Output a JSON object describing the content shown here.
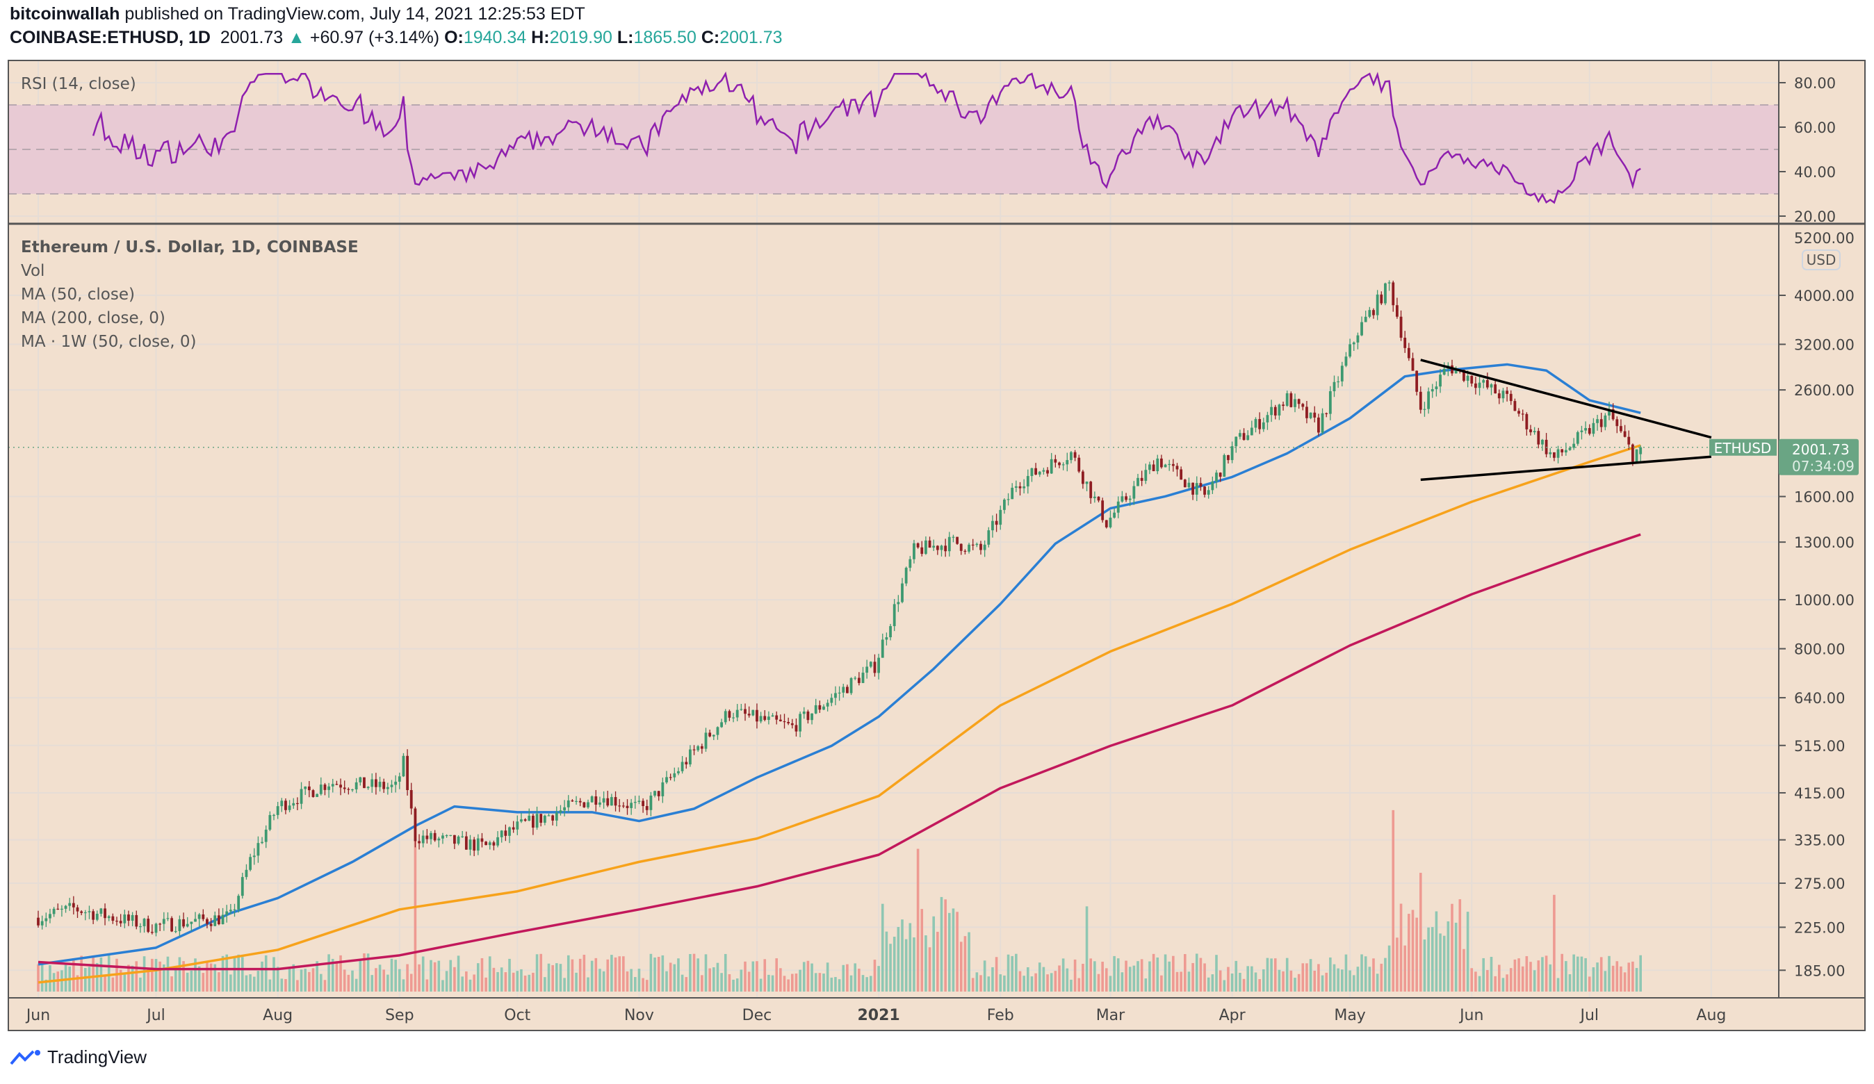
{
  "header": {
    "author": "bitcoinwallah",
    "published": "published on TradingView.com, July 14, 2021 12:25:53 EDT",
    "symbol": "COINBASE:ETHUSD, 1D",
    "last": "2001.73",
    "change": "+60.97 (+3.14%)",
    "o_label": "O:",
    "o": "1940.34",
    "h_label": "H:",
    "h": "2019.90",
    "l_label": "L:",
    "l": "1865.50",
    "c_label": "C:",
    "c": "2001.73"
  },
  "legend": {
    "rsi": "RSI (14, close)",
    "title": "Ethereum / U.S. Dollar, 1D, COINBASE",
    "vol": "Vol",
    "ma50": "MA (50, close)",
    "ma200": "MA (200, close, 0)",
    "ma1w": "MA · 1W (50, close, 0)"
  },
  "currency_badge": "USD",
  "price_tag": {
    "symbol": "ETHUSD",
    "price": "2001.73",
    "countdown": "07:34:09"
  },
  "brand": "TradingView",
  "colors": {
    "background": "#f2e0cf",
    "up": "#3d9970",
    "down": "#8f1d22",
    "vol_up": "#8fc7b3",
    "vol_down": "#ee9a92",
    "ma50": "#2a7fd4",
    "ma200": "#f7a21b",
    "ma1w": "#c2185b",
    "rsi": "#8e1fae",
    "rsi_band": "#e8cad4",
    "tag": "#6aa584"
  },
  "chart_data": {
    "type": "candlestick",
    "title": "Ethereum / U.S. Dollar, 1D, COINBASE",
    "y_scale": "log",
    "ylim": [
      170,
      5200
    ],
    "y_ticks": [
      "4000.00",
      "3200.00",
      "2600.00",
      "1600.00",
      "1300.00",
      "1000.00",
      "800.00",
      "640.00",
      "515.00",
      "415.00",
      "335.00",
      "275.00",
      "225.00",
      "185.00"
    ],
    "y_tick_top_partial": "5200.00",
    "x_ticks": [
      {
        "label": "Jun",
        "date": "2020-06-01"
      },
      {
        "label": "Jul",
        "date": "2020-07-01"
      },
      {
        "label": "Aug",
        "date": "2020-08-01"
      },
      {
        "label": "Sep",
        "date": "2020-09-01"
      },
      {
        "label": "Oct",
        "date": "2020-10-01"
      },
      {
        "label": "Nov",
        "date": "2020-11-01"
      },
      {
        "label": "Dec",
        "date": "2020-12-01"
      },
      {
        "label": "2021",
        "date": "2021-01-01"
      },
      {
        "label": "Feb",
        "date": "2021-02-01"
      },
      {
        "label": "Mar",
        "date": "2021-03-01"
      },
      {
        "label": "Apr",
        "date": "2021-04-01"
      },
      {
        "label": "May",
        "date": "2021-05-01"
      },
      {
        "label": "Jun",
        "date": "2021-06-01"
      },
      {
        "label": "Jul",
        "date": "2021-07-01"
      },
      {
        "label": "Aug",
        "date": "2021-08-01"
      }
    ],
    "last_bar": {
      "date": "2021-07-14",
      "open": 1940.34,
      "high": 2019.9,
      "low": 1865.5,
      "close": 2001.73
    },
    "close_keypoints": [
      [
        "2020-06-01",
        235
      ],
      [
        "2020-06-10",
        245
      ],
      [
        "2020-06-30",
        226
      ],
      [
        "2020-07-20",
        236
      ],
      [
        "2020-07-25",
        305
      ],
      [
        "2020-08-01",
        390
      ],
      [
        "2020-08-14",
        435
      ],
      [
        "2020-08-31",
        425
      ],
      [
        "2020-09-02",
        475
      ],
      [
        "2020-09-05",
        340
      ],
      [
        "2020-09-23",
        325
      ],
      [
        "2020-10-01",
        355
      ],
      [
        "2020-10-22",
        410
      ],
      [
        "2020-11-02",
        385
      ],
      [
        "2020-11-24",
        600
      ],
      [
        "2020-12-10",
        560
      ],
      [
        "2020-12-31",
        740
      ],
      [
        "2021-01-10",
        1250
      ],
      [
        "2021-01-20",
        1300
      ],
      [
        "2021-01-27",
        1250
      ],
      [
        "2021-02-05",
        1700
      ],
      [
        "2021-02-19",
        1950
      ],
      [
        "2021-02-28",
        1420
      ],
      [
        "2021-03-13",
        1900
      ],
      [
        "2021-03-25",
        1600
      ],
      [
        "2021-04-02",
        2050
      ],
      [
        "2021-04-15",
        2500
      ],
      [
        "2021-04-23",
        2200
      ],
      [
        "2021-05-03",
        3400
      ],
      [
        "2021-05-11",
        4200
      ],
      [
        "2021-05-19",
        2400
      ],
      [
        "2021-05-26",
        2900
      ],
      [
        "2021-06-10",
        2500
      ],
      [
        "2021-06-22",
        1900
      ],
      [
        "2021-07-06",
        2330
      ],
      [
        "2021-07-12",
        1940
      ],
      [
        "2021-07-14",
        2001.73
      ]
    ],
    "series": [
      {
        "name": "MA (50, close)",
        "color_key": "ma50",
        "points": [
          [
            "2020-06-01",
            190
          ],
          [
            "2020-07-01",
            205
          ],
          [
            "2020-07-20",
            240
          ],
          [
            "2020-08-01",
            257
          ],
          [
            "2020-08-20",
            303
          ],
          [
            "2020-09-05",
            357
          ],
          [
            "2020-09-15",
            390
          ],
          [
            "2020-10-01",
            380
          ],
          [
            "2020-10-20",
            380
          ],
          [
            "2020-11-01",
            365
          ],
          [
            "2020-11-15",
            386
          ],
          [
            "2020-12-01",
            445
          ],
          [
            "2020-12-20",
            514
          ],
          [
            "2021-01-01",
            587
          ],
          [
            "2021-01-15",
            730
          ],
          [
            "2021-02-01",
            981
          ],
          [
            "2021-02-15",
            1291
          ],
          [
            "2021-03-01",
            1516
          ],
          [
            "2021-03-15",
            1601
          ],
          [
            "2021-04-01",
            1749
          ],
          [
            "2021-04-15",
            1947
          ],
          [
            "2021-05-01",
            2285
          ],
          [
            "2021-05-15",
            2765
          ],
          [
            "2021-05-25",
            2840
          ],
          [
            "2021-06-10",
            2920
          ],
          [
            "2021-06-20",
            2840
          ],
          [
            "2021-07-01",
            2480
          ],
          [
            "2021-07-14",
            2342
          ]
        ]
      },
      {
        "name": "MA (200, close, 0)",
        "color_key": "ma200",
        "points": [
          [
            "2020-06-01",
            175
          ],
          [
            "2020-07-01",
            185
          ],
          [
            "2020-08-01",
            203
          ],
          [
            "2020-09-01",
            244
          ],
          [
            "2020-10-01",
            265
          ],
          [
            "2020-11-01",
            303
          ],
          [
            "2020-12-01",
            337
          ],
          [
            "2021-01-01",
            409
          ],
          [
            "2021-02-01",
            618
          ],
          [
            "2021-03-01",
            790
          ],
          [
            "2021-04-01",
            981
          ],
          [
            "2021-05-01",
            1256
          ],
          [
            "2021-06-01",
            1562
          ],
          [
            "2021-07-01",
            1873
          ],
          [
            "2021-07-14",
            2020
          ]
        ]
      },
      {
        "name": "MA · 1W (50, close, 0)",
        "color_key": "ma1w",
        "points": [
          [
            "2020-06-01",
            192
          ],
          [
            "2020-07-01",
            186
          ],
          [
            "2020-08-01",
            186
          ],
          [
            "2020-09-01",
            198
          ],
          [
            "2020-10-01",
            220
          ],
          [
            "2020-11-01",
            244
          ],
          [
            "2020-12-01",
            271
          ],
          [
            "2021-01-01",
            313
          ],
          [
            "2021-02-01",
            424
          ],
          [
            "2021-03-01",
            514
          ],
          [
            "2021-04-01",
            618
          ],
          [
            "2021-05-01",
            812
          ],
          [
            "2021-06-01",
            1025
          ],
          [
            "2021-07-01",
            1244
          ],
          [
            "2021-07-14",
            1346
          ]
        ]
      }
    ],
    "trendlines": [
      {
        "name": "triangle-upper",
        "from": [
          "2021-05-19",
          2981
        ],
        "to": [
          "2021-08-01",
          2094
        ]
      },
      {
        "name": "triangle-lower",
        "from": [
          "2021-05-19",
          1727
        ],
        "to": [
          "2021-08-01",
          1918
        ]
      }
    ],
    "rsi": {
      "label": "RSI (14, close)",
      "period": 14,
      "ylim": [
        15,
        85
      ],
      "ticks": [
        "80.00",
        "60.00",
        "40.00",
        "20.00"
      ],
      "band": [
        30,
        70
      ],
      "mid": 50
    }
  }
}
